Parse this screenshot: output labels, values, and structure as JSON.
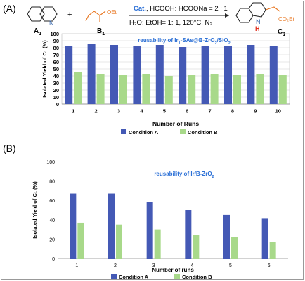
{
  "scheme": {
    "panel_label": "(A)",
    "reactant_a": {
      "name": "A",
      "subscript": "1"
    },
    "plus": "+",
    "reactant_b": {
      "name": "B",
      "subscript": "1",
      "ester_label": "OEt"
    },
    "conditions_line1_cat": "Cat.",
    "conditions_line1_rest": ", HCOOH: HCOONa = 2 : 1",
    "conditions_line2": "H₂O: EtOH= 1: 1, 120°C, N₂",
    "product": {
      "name": "C",
      "subscript": "1",
      "ester_label": "CO₂Et",
      "nh_label": "H"
    }
  },
  "colors": {
    "condition_a": "#4459b5",
    "condition_b": "#a8d98a",
    "title": "#2a6fd6",
    "red": "#e03020",
    "orange": "#e87722",
    "blue_n": "#2c5fa8"
  },
  "chart_data": [
    {
      "type": "bar",
      "title_parts": {
        "prefix": "reusability of Ir",
        "sub": "1",
        "suffix": "-SAs@B-ZrO",
        "sub2": "2",
        "suffix2": "/SiO",
        "sub3": "2"
      },
      "ylabel": "Isolated Yield of C₁ (%)",
      "xlabel": "Number of Runs",
      "ylim": [
        0,
        100
      ],
      "yticks": [
        0,
        10,
        20,
        30,
        40,
        50,
        60,
        70,
        80,
        90,
        100
      ],
      "grid": true,
      "legend_position": "bottom",
      "categories": [
        "1",
        "2",
        "3",
        "4",
        "5",
        "6",
        "7",
        "8",
        "9",
        "10"
      ],
      "series": [
        {
          "name": "Condition A",
          "values": [
            82,
            85,
            84,
            83,
            84,
            81,
            83,
            82,
            84,
            83
          ]
        },
        {
          "name": "Condition B",
          "values": [
            45,
            43,
            41,
            42,
            40,
            41,
            42,
            41,
            42,
            41
          ]
        }
      ]
    },
    {
      "type": "bar",
      "panel_label": "(B)",
      "title_parts": {
        "prefix": "reusability of Ir/B-ZrO",
        "sub": "2"
      },
      "ylabel": "Isolated Yield of C₁ (%)",
      "xlabel": "Number of runs",
      "ylim": [
        0,
        100
      ],
      "yticks": [
        0,
        20,
        40,
        60,
        80,
        100
      ],
      "grid": false,
      "legend_position": "bottom",
      "categories": [
        "1",
        "2",
        "3",
        "4",
        "5",
        "6"
      ],
      "series": [
        {
          "name": "Condition A",
          "values": [
            67,
            67,
            58,
            50,
            45,
            41
          ]
        },
        {
          "name": "Condition B",
          "values": [
            37,
            35,
            30,
            24,
            22,
            17
          ]
        }
      ]
    }
  ]
}
